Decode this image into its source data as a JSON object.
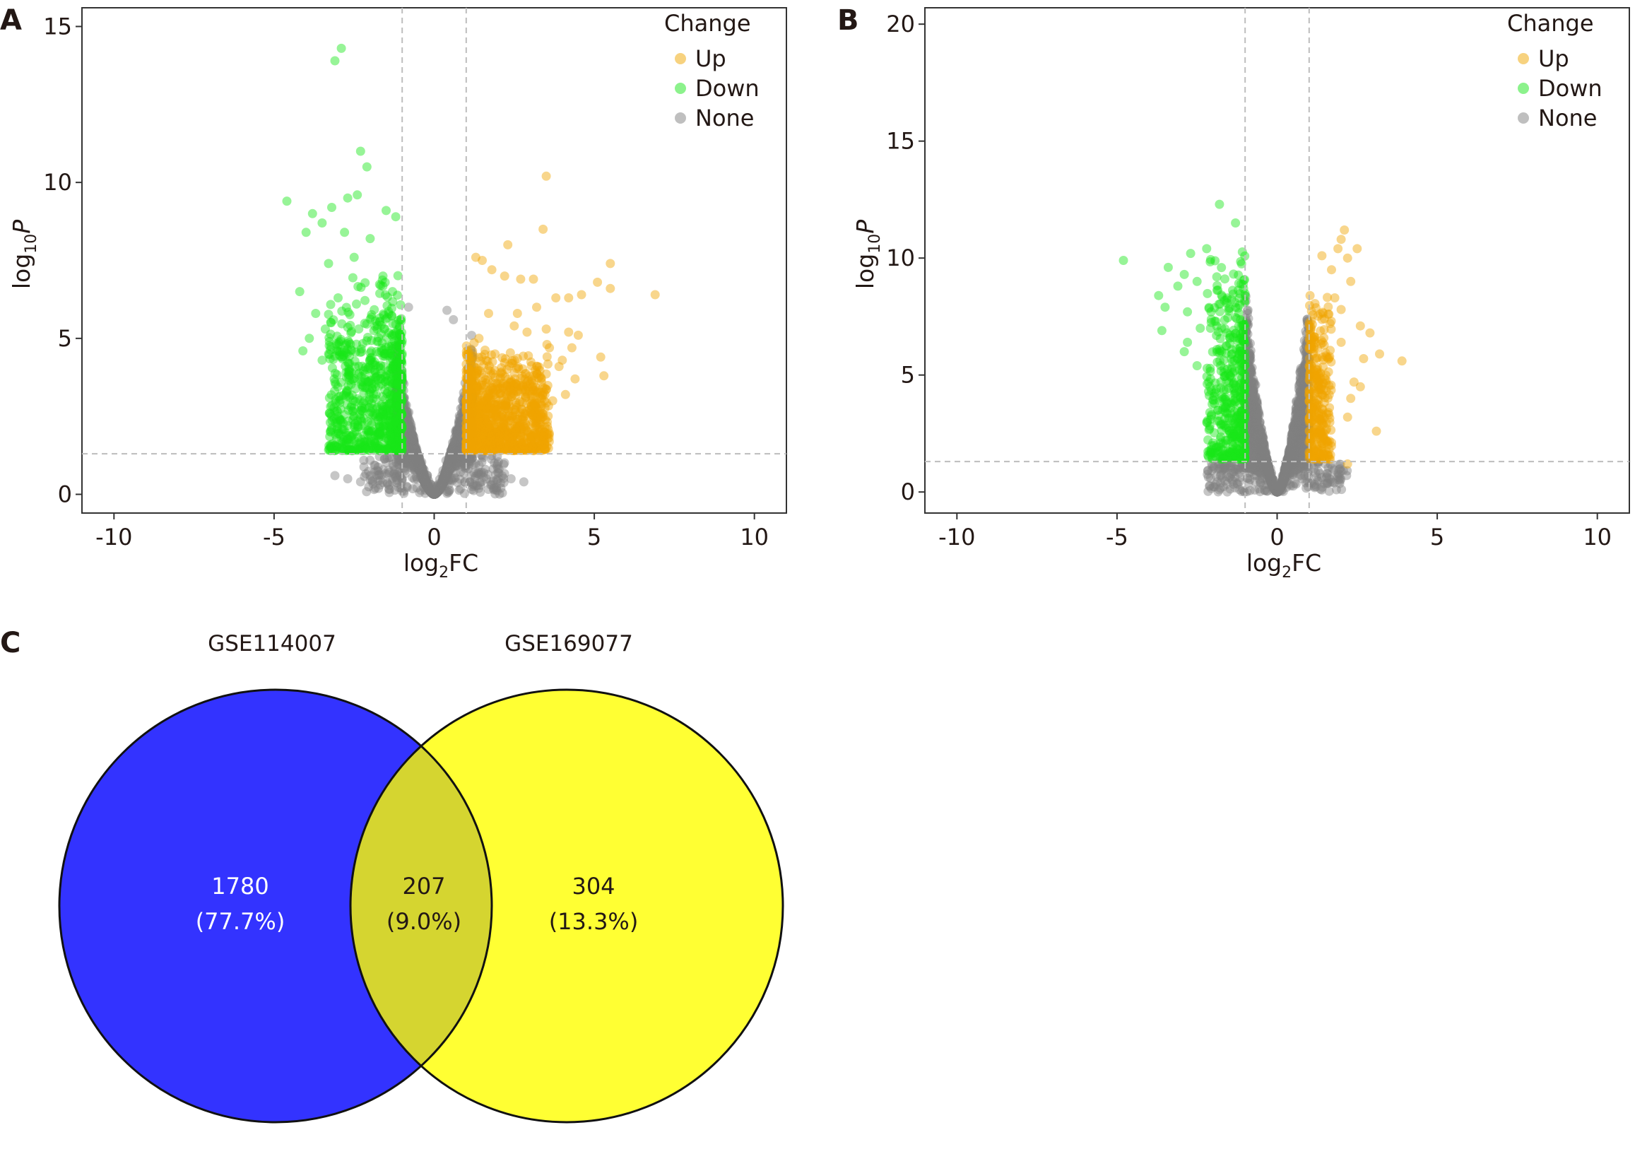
{
  "panel_a": {
    "letter": "A",
    "chart_data": {
      "type": "scatter",
      "xlabel_main": "log",
      "xlabel_sub": "2",
      "xlabel_tail": "FC",
      "ylabel_main": "log",
      "ylabel_sub": "10",
      "ylabel_tail": "P",
      "xlim": [
        -11,
        11
      ],
      "ylim": [
        -0.6,
        15.6
      ],
      "xticks": [
        -10,
        -5,
        0,
        5,
        10
      ],
      "xtick_labels": [
        "-10",
        "-5",
        "0",
        "5",
        "10"
      ],
      "yticks": [
        0,
        5,
        10,
        15
      ],
      "ytick_labels": [
        "0",
        "5",
        "10",
        "15"
      ],
      "fc_threshold": 1,
      "p_threshold": 1.3,
      "volcano_max_abs_fc": 1.2,
      "volcano_max_p": 5.4,
      "legend_title": "Change",
      "legend": [
        {
          "name": "Up",
          "color": "#f0a500"
        },
        {
          "name": "Down",
          "color": "#19e619"
        },
        {
          "name": "None",
          "color": "#808080"
        }
      ],
      "series": [
        {
          "name": "Up",
          "color": "#f0a500",
          "points": [
            [
              3.5,
              10.2
            ],
            [
              2.3,
              8.0
            ],
            [
              3.4,
              8.5
            ],
            [
              1.3,
              7.6
            ],
            [
              1.5,
              7.5
            ],
            [
              1.8,
              7.2
            ],
            [
              2.2,
              7.0
            ],
            [
              2.7,
              6.9
            ],
            [
              3.1,
              6.9
            ],
            [
              5.5,
              7.4
            ],
            [
              5.1,
              6.8
            ],
            [
              5.5,
              6.6
            ],
            [
              4.6,
              6.4
            ],
            [
              6.9,
              6.4
            ],
            [
              3.8,
              6.3
            ],
            [
              4.2,
              6.3
            ],
            [
              3.2,
              6.0
            ],
            [
              1.7,
              5.8
            ],
            [
              2.6,
              5.8
            ],
            [
              2.5,
              5.4
            ],
            [
              2.9,
              5.2
            ],
            [
              3.5,
              5.3
            ],
            [
              4.2,
              5.2
            ],
            [
              4.5,
              5.1
            ],
            [
              4.3,
              4.7
            ],
            [
              4.0,
              4.3
            ],
            [
              3.6,
              4.7
            ],
            [
              3.9,
              4.1
            ],
            [
              5.2,
              4.4
            ],
            [
              4.4,
              3.7
            ],
            [
              5.3,
              3.8
            ],
            [
              1.4,
              5.0
            ],
            [
              1.9,
              4.5
            ],
            [
              3.2,
              3.9
            ],
            [
              4.1,
              3.2
            ],
            [
              3.7,
              3.0
            ],
            [
              2.9,
              2.2
            ],
            [
              1.6,
              2.0
            ],
            [
              1.1,
              1.5
            ],
            [
              2.2,
              1.5
            ]
          ],
          "cloud": {
            "x": [
              1,
              3.6
            ],
            "y": [
              1.4,
              5.0
            ],
            "n": 1100
          }
        },
        {
          "name": "Down",
          "color": "#19e619",
          "points": [
            [
              -2.9,
              14.3
            ],
            [
              -3.1,
              13.9
            ],
            [
              -2.3,
              11.0
            ],
            [
              -2.1,
              10.5
            ],
            [
              -4.6,
              9.4
            ],
            [
              -2.7,
              9.5
            ],
            [
              -3.2,
              9.2
            ],
            [
              -3.8,
              9.0
            ],
            [
              -2.4,
              9.6
            ],
            [
              -3.5,
              8.7
            ],
            [
              -1.5,
              9.1
            ],
            [
              -1.2,
              8.9
            ],
            [
              -4.0,
              8.4
            ],
            [
              -2.8,
              8.4
            ],
            [
              -2.0,
              8.2
            ],
            [
              -3.3,
              7.4
            ],
            [
              -2.5,
              7.6
            ],
            [
              -1.6,
              7.0
            ],
            [
              -3.0,
              6.3
            ],
            [
              -4.2,
              6.5
            ],
            [
              -3.7,
              5.8
            ],
            [
              -3.4,
              5.3
            ],
            [
              -3.9,
              5.0
            ],
            [
              -4.1,
              4.6
            ],
            [
              -3.5,
              4.3
            ],
            [
              -3.1,
              3.6
            ],
            [
              -3.0,
              2.5
            ],
            [
              -2.7,
              2.2
            ],
            [
              -2.3,
              1.6
            ],
            [
              -1.2,
              1.5
            ]
          ],
          "cloud": {
            "x": [
              -3.3,
              -1
            ],
            "y": [
              1.4,
              7.2
            ],
            "n": 800
          }
        },
        {
          "name": "None",
          "color": "#808080",
          "points": [
            [
              -3.1,
              0.6
            ],
            [
              -2.7,
              0.5
            ],
            [
              -2.3,
              0.4
            ],
            [
              -2.0,
              0.6
            ],
            [
              2.0,
              0.5
            ],
            [
              2.4,
              0.5
            ],
            [
              2.8,
              0.4
            ],
            [
              -1.4,
              0.7
            ],
            [
              1.6,
              0.8
            ],
            [
              -0.8,
              6.0
            ],
            [
              0.6,
              5.6
            ],
            [
              0.4,
              5.9
            ]
          ],
          "cloud": {
            "x": [
              -1.25,
              1.25
            ],
            "y": [
              0,
              6
            ],
            "n": 2200
          }
        }
      ]
    },
    "legend_labels": {
      "title": "Change",
      "up": "Up",
      "down": "Down",
      "none": "None"
    }
  },
  "panel_b": {
    "letter": "B",
    "chart_data": {
      "type": "scatter",
      "xlabel_main": "log",
      "xlabel_sub": "2",
      "xlabel_tail": "FC",
      "ylabel_main": "log",
      "ylabel_sub": "10",
      "ylabel_tail": "P",
      "xlim": [
        -11,
        11
      ],
      "ylim": [
        -0.9,
        20.7
      ],
      "xticks": [
        -10,
        -5,
        0,
        5,
        10
      ],
      "xtick_labels": [
        "-10",
        "-5",
        "0",
        "5",
        "10"
      ],
      "yticks": [
        0,
        5,
        10,
        15,
        20
      ],
      "ytick_labels": [
        "0",
        "5",
        "10",
        "15",
        "20"
      ],
      "fc_threshold": 1,
      "p_threshold": 1.3,
      "volcano_max_abs_fc": 1.0,
      "volcano_max_p": 9.2,
      "legend_title": "Change",
      "legend": [
        {
          "name": "Up",
          "color": "#f0a500"
        },
        {
          "name": "Down",
          "color": "#19e619"
        },
        {
          "name": "None",
          "color": "#808080"
        }
      ],
      "series": [
        {
          "name": "Up",
          "color": "#f0a500",
          "points": [
            [
              2.1,
              11.2
            ],
            [
              2.0,
              10.8
            ],
            [
              1.9,
              10.4
            ],
            [
              2.5,
              10.4
            ],
            [
              2.2,
              10.0
            ],
            [
              1.4,
              10.1
            ],
            [
              1.7,
              9.5
            ],
            [
              2.3,
              9.0
            ],
            [
              1.8,
              8.3
            ],
            [
              2.6,
              7.1
            ],
            [
              2.0,
              7.8
            ],
            [
              2.9,
              6.8
            ],
            [
              2.0,
              6.4
            ],
            [
              2.7,
              5.7
            ],
            [
              3.2,
              5.9
            ],
            [
              3.9,
              5.6
            ],
            [
              2.4,
              4.7
            ],
            [
              2.6,
              4.5
            ],
            [
              2.3,
              4.0
            ],
            [
              1.6,
              3.4
            ],
            [
              2.2,
              3.2
            ],
            [
              3.1,
              2.6
            ],
            [
              1.6,
              1.6
            ],
            [
              2.2,
              1.2
            ]
          ],
          "cloud": {
            "x": [
              1,
              1.7
            ],
            "y": [
              1.4,
              9
            ],
            "n": 300
          }
        },
        {
          "name": "Down",
          "color": "#19e619",
          "points": [
            [
              -1.8,
              12.3
            ],
            [
              -1.3,
              11.5
            ],
            [
              -4.8,
              9.9
            ],
            [
              -2.7,
              10.2
            ],
            [
              -2.2,
              10.4
            ],
            [
              -3.4,
              9.6
            ],
            [
              -2.9,
              9.3
            ],
            [
              -2.5,
              9.0
            ],
            [
              -3.1,
              8.8
            ],
            [
              -3.7,
              8.4
            ],
            [
              -3.5,
              7.9
            ],
            [
              -2.8,
              7.7
            ],
            [
              -3.6,
              6.9
            ],
            [
              -2.4,
              7.0
            ],
            [
              -2.8,
              6.4
            ],
            [
              -2.9,
              6.0
            ],
            [
              -2.5,
              5.4
            ],
            [
              -2.1,
              4.5
            ],
            [
              -1.8,
              3.9
            ],
            [
              -2.1,
              3.4
            ],
            [
              -1.7,
              1.8
            ],
            [
              -1.5,
              1.7
            ]
          ],
          "cloud": {
            "x": [
              -2.2,
              -1
            ],
            "y": [
              1.4,
              10.5
            ],
            "n": 450
          }
        },
        {
          "name": "None",
          "color": "#808080",
          "points": [
            [
              -1.8,
              1.3
            ],
            [
              -1.1,
              1.2
            ],
            [
              1.3,
              1.3
            ],
            [
              1.5,
              1.2
            ]
          ],
          "cloud": {
            "x": [
              -1,
              1
            ],
            "y": [
              0,
              9.2
            ],
            "n": 2800
          }
        }
      ]
    },
    "legend_labels": {
      "title": "Change",
      "up": "Up",
      "down": "Down",
      "none": "None"
    }
  },
  "panel_c": {
    "letter": "C",
    "chart_data": {
      "type": "venn",
      "sets": [
        {
          "name": "GSE114007",
          "color": "#3333ff"
        },
        {
          "name": "GSE169077",
          "color": "#ffff33"
        }
      ],
      "intersection_color": "#d5d530",
      "regions": [
        {
          "region": "GSE114007 only",
          "count": "1780",
          "percent": "(77.7%)"
        },
        {
          "region": "both",
          "count": "207",
          "percent": "(9.0%)"
        },
        {
          "region": "GSE169077 only",
          "count": "304",
          "percent": "(13.3%)"
        }
      ]
    }
  }
}
